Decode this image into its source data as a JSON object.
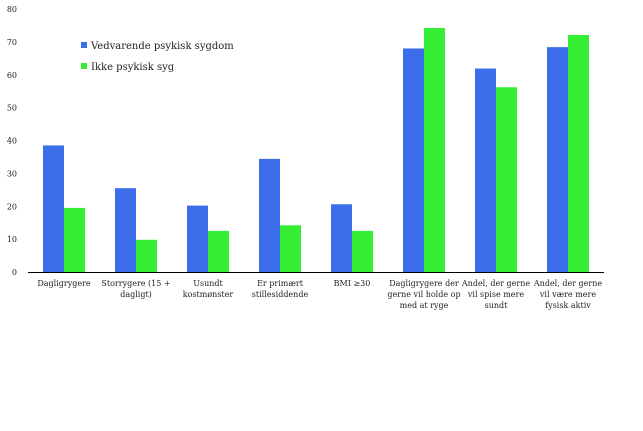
{
  "chart_data": {
    "type": "bar",
    "title": "",
    "xlabel": "",
    "ylabel": "",
    "ylim": [
      0,
      80
    ],
    "yticks": [
      0,
      10,
      20,
      30,
      40,
      50,
      60,
      70,
      80
    ],
    "grid": false,
    "legend_position": "top-left",
    "categories": [
      [
        "Dagligrygere"
      ],
      [
        "Storrygere (15 +",
        "dagligt)"
      ],
      [
        "Usundt",
        "kostmønster"
      ],
      [
        "Er primært",
        "stillesiddende"
      ],
      [
        "BMI ≥30"
      ],
      [
        "Dagligrygere der",
        "gerne vil holde op",
        "med at ryge"
      ],
      [
        "Andel, der gerne",
        "vil spise mere",
        "sundt"
      ],
      [
        "Andel, der gerne",
        "vil være mere",
        "fysisk aktiv"
      ]
    ],
    "series": [
      {
        "name": "Vedvarende psykisk sygdom",
        "color": "#3d6eea",
        "values": [
          38.5,
          25.5,
          20.2,
          34.4,
          20.6,
          68.0,
          61.9,
          68.4
        ]
      },
      {
        "name": "Ikke psykisk syg",
        "color": "#33ee33",
        "values": [
          19.5,
          9.8,
          12.5,
          14.2,
          12.5,
          74.2,
          56.2,
          72.1
        ]
      }
    ]
  }
}
